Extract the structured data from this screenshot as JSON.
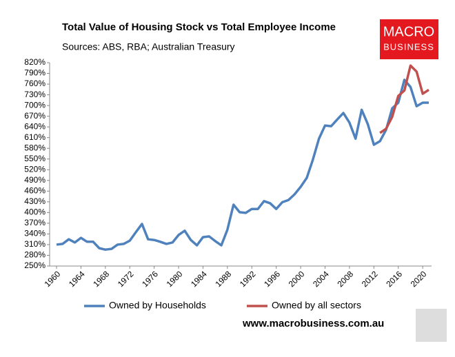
{
  "chart_data": {
    "type": "line",
    "title": "Total Value of Housing Stock vs Total Employee Income",
    "subtitle": "Sources: ABS, RBA; Australian Treasury",
    "logo": [
      "MACRO",
      "BUSINESS"
    ],
    "source_url": "www.macrobusiness.com.au",
    "x": [
      1960,
      1961,
      1962,
      1963,
      1964,
      1965,
      1966,
      1967,
      1968,
      1969,
      1970,
      1971,
      1972,
      1973,
      1974,
      1975,
      1976,
      1977,
      1978,
      1979,
      1980,
      1981,
      1982,
      1983,
      1984,
      1985,
      1986,
      1987,
      1988,
      1989,
      1990,
      1991,
      1992,
      1993,
      1994,
      1995,
      1996,
      1997,
      1998,
      1999,
      2000,
      2001,
      2002,
      2003,
      2004,
      2005,
      2006,
      2007,
      2008,
      2009,
      2010,
      2011,
      2012,
      2013,
      2014,
      2015,
      2016,
      2017,
      2018,
      2019,
      2020,
      2021
    ],
    "series": [
      {
        "name": "Owned by Households",
        "color": "#4f81bd",
        "values": [
          310,
          312,
          325,
          316,
          329,
          318,
          318,
          300,
          296,
          298,
          310,
          312,
          321,
          345,
          368,
          325,
          323,
          318,
          312,
          316,
          337,
          349,
          323,
          308,
          331,
          333,
          320,
          308,
          352,
          422,
          401,
          399,
          410,
          410,
          432,
          426,
          410,
          429,
          435,
          451,
          472,
          497,
          548,
          607,
          644,
          642,
          661,
          679,
          652,
          607,
          688,
          648,
          590,
          600,
          632,
          692,
          708,
          772,
          752,
          698,
          708,
          708
        ]
      },
      {
        "name": "Owned by all sectors",
        "color": "#c0504d",
        "values": [
          null,
          null,
          null,
          null,
          null,
          null,
          null,
          null,
          null,
          null,
          null,
          null,
          null,
          null,
          null,
          null,
          null,
          null,
          null,
          null,
          null,
          null,
          null,
          null,
          null,
          null,
          null,
          null,
          null,
          null,
          null,
          null,
          null,
          null,
          null,
          null,
          null,
          null,
          null,
          null,
          null,
          null,
          null,
          null,
          null,
          null,
          null,
          null,
          null,
          null,
          null,
          null,
          null,
          623,
          635,
          668,
          727,
          742,
          812,
          795,
          733,
          744
        ]
      }
    ],
    "xlim": [
      1960,
      2021
    ],
    "xticks": [
      1960,
      1964,
      1968,
      1972,
      1976,
      1980,
      1984,
      1988,
      1992,
      1996,
      2000,
      2004,
      2008,
      2012,
      2016,
      2020
    ],
    "ylim": [
      250,
      820
    ],
    "yticks": [
      {
        "value": 250,
        "label": "250%"
      },
      {
        "value": 280,
        "label": "280%"
      },
      {
        "value": 310,
        "label": "310%"
      },
      {
        "value": 340,
        "label": "340%"
      },
      {
        "value": 370,
        "label": "370%"
      },
      {
        "value": 400,
        "label": "400%"
      },
      {
        "value": 430,
        "label": "430%"
      },
      {
        "value": 460,
        "label": "460%"
      },
      {
        "value": 490,
        "label": "490%"
      },
      {
        "value": 520,
        "label": "520%"
      },
      {
        "value": 550,
        "label": "550%"
      },
      {
        "value": 580,
        "label": "580%"
      },
      {
        "value": 610,
        "label": "610%"
      },
      {
        "value": 640,
        "label": "640%"
      },
      {
        "value": 670,
        "label": "670%"
      },
      {
        "value": 700,
        "label": "700%"
      },
      {
        "value": 730,
        "label": "730%"
      },
      {
        "value": 760,
        "label": "760%"
      },
      {
        "value": 790,
        "label": "790%"
      },
      {
        "value": 820,
        "label": "820%"
      }
    ],
    "grid": false
  }
}
